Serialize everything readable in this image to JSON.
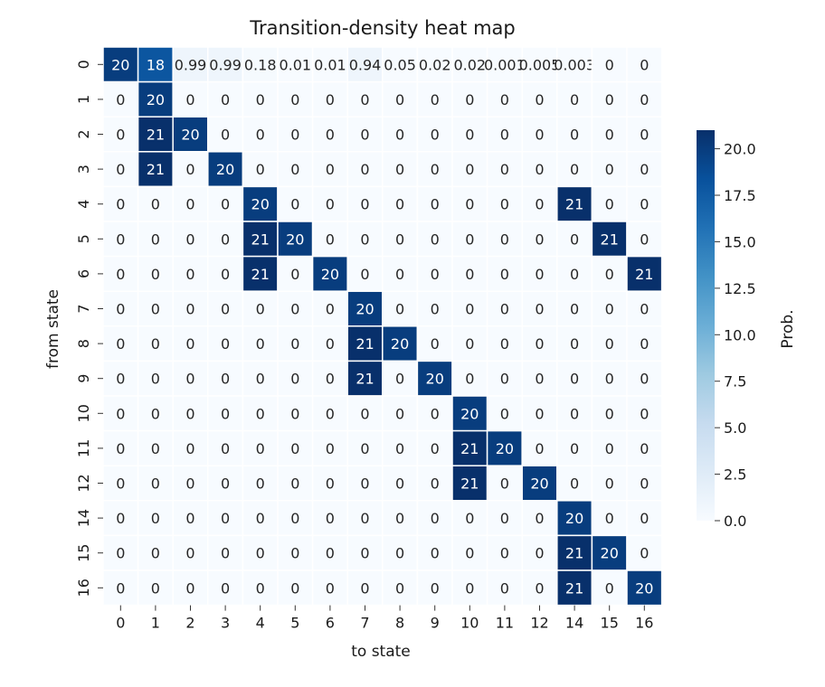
{
  "chart_data": {
    "type": "heatmap",
    "title": "Transition-density heat map",
    "xlabel": "to state",
    "ylabel": "from state",
    "x_categories": [
      "0",
      "1",
      "2",
      "3",
      "4",
      "5",
      "6",
      "7",
      "8",
      "9",
      "10",
      "11",
      "12",
      "14",
      "15",
      "16"
    ],
    "y_categories": [
      "0",
      "1",
      "2",
      "3",
      "4",
      "5",
      "6",
      "7",
      "8",
      "9",
      "10",
      "11",
      "12",
      "14",
      "15",
      "16"
    ],
    "values": [
      [
        20,
        18,
        0.99,
        0.99,
        0.18,
        0.01,
        0.01,
        0.94,
        0.05,
        0.02,
        0.02,
        0.001,
        0.005,
        0.003,
        0,
        0
      ],
      [
        0,
        20,
        0,
        0,
        0,
        0,
        0,
        0,
        0,
        0,
        0,
        0,
        0,
        0,
        0,
        0
      ],
      [
        0,
        21,
        20,
        0,
        0,
        0,
        0,
        0,
        0,
        0,
        0,
        0,
        0,
        0,
        0,
        0
      ],
      [
        0,
        21,
        0,
        20,
        0,
        0,
        0,
        0,
        0,
        0,
        0,
        0,
        0,
        0,
        0,
        0
      ],
      [
        0,
        0,
        0,
        0,
        20,
        0,
        0,
        0,
        0,
        0,
        0,
        0,
        0,
        21,
        0,
        0
      ],
      [
        0,
        0,
        0,
        0,
        21,
        20,
        0,
        0,
        0,
        0,
        0,
        0,
        0,
        0,
        21,
        0
      ],
      [
        0,
        0,
        0,
        0,
        21,
        0,
        20,
        0,
        0,
        0,
        0,
        0,
        0,
        0,
        0,
        21
      ],
      [
        0,
        0,
        0,
        0,
        0,
        0,
        0,
        20,
        0,
        0,
        0,
        0,
        0,
        0,
        0,
        0
      ],
      [
        0,
        0,
        0,
        0,
        0,
        0,
        0,
        21,
        20,
        0,
        0,
        0,
        0,
        0,
        0,
        0
      ],
      [
        0,
        0,
        0,
        0,
        0,
        0,
        0,
        21,
        0,
        20,
        0,
        0,
        0,
        0,
        0,
        0
      ],
      [
        0,
        0,
        0,
        0,
        0,
        0,
        0,
        0,
        0,
        0,
        20,
        0,
        0,
        0,
        0,
        0
      ],
      [
        0,
        0,
        0,
        0,
        0,
        0,
        0,
        0,
        0,
        0,
        21,
        20,
        0,
        0,
        0,
        0
      ],
      [
        0,
        0,
        0,
        0,
        0,
        0,
        0,
        0,
        0,
        0,
        21,
        0,
        20,
        0,
        0,
        0
      ],
      [
        0,
        0,
        0,
        0,
        0,
        0,
        0,
        0,
        0,
        0,
        0,
        0,
        0,
        20,
        0,
        0
      ],
      [
        0,
        0,
        0,
        0,
        0,
        0,
        0,
        0,
        0,
        0,
        0,
        0,
        0,
        21,
        20,
        0
      ],
      [
        0,
        0,
        0,
        0,
        0,
        0,
        0,
        0,
        0,
        0,
        0,
        0,
        0,
        21,
        0,
        20
      ]
    ],
    "annotations_row0": [
      "20",
      "18",
      "0.99",
      "0.99",
      "0.18",
      "0.01",
      "0.01",
      "0.94",
      "0.05",
      "0.02",
      "0.02",
      "0.001",
      "0.005",
      "0.003",
      "0",
      "0"
    ],
    "colorbar": {
      "label": "Prob.",
      "min": 0,
      "max": 21,
      "ticks": [
        "0.0",
        "2.5",
        "5.0",
        "7.5",
        "10.0",
        "12.5",
        "15.0",
        "17.5",
        "20.0"
      ],
      "colormap": "Blues",
      "low_color": "#f7fbff",
      "high_color": "#08306b"
    },
    "grid": true,
    "legend": "right"
  }
}
